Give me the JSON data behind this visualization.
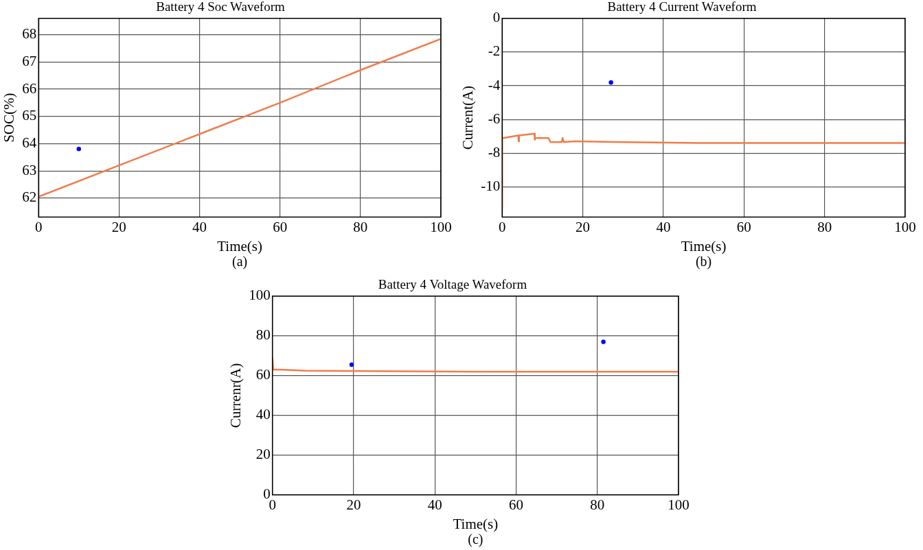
{
  "chart_data": [
    {
      "type": "line",
      "title": "Battery 4 Soc Waveform",
      "xlabel": "Time(s)",
      "ylabel": "SOC(%)",
      "annotations": [
        "(a)"
      ],
      "xlim": [
        0,
        100
      ],
      "xticks": [
        0,
        20,
        40,
        60,
        80,
        100
      ],
      "ylim": [
        61.3,
        68.6
      ],
      "yticks": [
        62,
        63,
        64,
        65,
        66,
        67,
        68
      ],
      "grid": true,
      "series": [
        {
          "color": "#f07c4a",
          "x": [
            0,
            20,
            40,
            60,
            80,
            100
          ],
          "values": [
            62.05,
            63.2,
            64.35,
            65.5,
            66.7,
            67.85
          ]
        },
        {
          "type": "scatter",
          "marker": "circle",
          "color": "#0000ff",
          "x": [
            10
          ],
          "values": [
            63.8
          ]
        }
      ]
    },
    {
      "type": "line",
      "title": "Battery 4 Current Waveform",
      "xlabel": "Time(s)",
      "ylabel": "Current(A)",
      "annotations": [
        "(b)"
      ],
      "xlim": [
        0,
        100
      ],
      "xticks": [
        0,
        20,
        40,
        60,
        80,
        100
      ],
      "ylim": [
        -11.8,
        0
      ],
      "yticks": [
        0,
        -2,
        -4,
        -6,
        -8,
        -10
      ],
      "grid": true,
      "series": [
        {
          "color": "#f07c4a",
          "x": [
            0,
            0,
            0.3,
            4,
            4.1,
            4.2,
            8,
            8.1,
            8.3,
            11.5,
            12,
            14.8,
            15,
            15.3,
            18,
            30,
            50,
            100
          ],
          "values": [
            -11.3,
            -7.1,
            -7.1,
            -6.95,
            -7.3,
            -6.95,
            -6.85,
            -7.2,
            -7.1,
            -7.1,
            -7.35,
            -7.35,
            -7.1,
            -7.35,
            -7.3,
            -7.35,
            -7.4,
            -7.4
          ]
        },
        {
          "type": "scatter",
          "marker": "circle",
          "color": "#0000ff",
          "x": [
            27
          ],
          "values": [
            -3.8
          ]
        }
      ]
    },
    {
      "type": "line",
      "title": "Battery 4 Voltage Waveform",
      "xlabel": "Time(s)",
      "ylabel": "Currenr(A)",
      "annotations": [
        "(c)"
      ],
      "xlim": [
        0,
        100
      ],
      "xticks": [
        0,
        20,
        40,
        60,
        80,
        100
      ],
      "ylim": [
        0,
        100
      ],
      "yticks": [
        0,
        20,
        40,
        60,
        80,
        100
      ],
      "grid": true,
      "series": [
        {
          "color": "#f07c4a",
          "x": [
            0,
            0.2,
            2,
            8,
            20,
            50,
            100
          ],
          "values": [
            69,
            63,
            63,
            62.5,
            62.3,
            62,
            62
          ]
        },
        {
          "type": "scatter",
          "marker": "circle",
          "color": "#0000ff",
          "x": [
            19.5,
            81.5
          ],
          "values": [
            65.5,
            77
          ]
        }
      ]
    }
  ]
}
